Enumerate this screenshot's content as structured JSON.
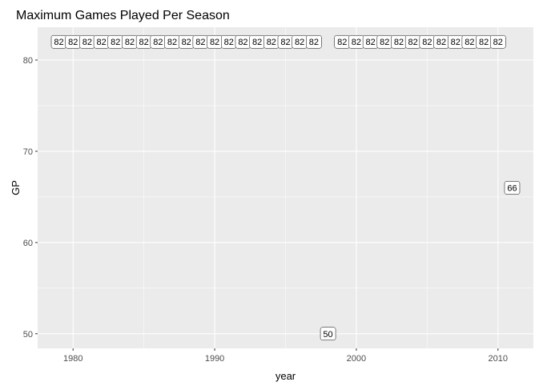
{
  "chart_data": {
    "type": "scatter",
    "title": "Maximum Games Played Per Season",
    "xlabel": "year",
    "ylabel": "GP",
    "xlim": [
      1977.5,
      2012.5
    ],
    "ylim": [
      48.4,
      83.6
    ],
    "x_ticks": [
      1980,
      1990,
      2000,
      2010
    ],
    "y_ticks": [
      50,
      60,
      70,
      80
    ],
    "grid": true,
    "legend": "none",
    "colors": {
      "panel_background": "#ebebeb",
      "grid_major": "#ffffff",
      "label_fill": "#ffffff",
      "label_border": "#000000"
    },
    "points": [
      {
        "x": 1979,
        "y": 82,
        "label": "82"
      },
      {
        "x": 1980,
        "y": 82,
        "label": "82"
      },
      {
        "x": 1981,
        "y": 82,
        "label": "82"
      },
      {
        "x": 1982,
        "y": 82,
        "label": "82"
      },
      {
        "x": 1983,
        "y": 82,
        "label": "82"
      },
      {
        "x": 1984,
        "y": 82,
        "label": "82"
      },
      {
        "x": 1985,
        "y": 82,
        "label": "82"
      },
      {
        "x": 1986,
        "y": 82,
        "label": "82"
      },
      {
        "x": 1987,
        "y": 82,
        "label": "82"
      },
      {
        "x": 1988,
        "y": 82,
        "label": "82"
      },
      {
        "x": 1989,
        "y": 82,
        "label": "82"
      },
      {
        "x": 1990,
        "y": 82,
        "label": "82"
      },
      {
        "x": 1991,
        "y": 82,
        "label": "82"
      },
      {
        "x": 1992,
        "y": 82,
        "label": "82"
      },
      {
        "x": 1993,
        "y": 82,
        "label": "82"
      },
      {
        "x": 1994,
        "y": 82,
        "label": "82"
      },
      {
        "x": 1995,
        "y": 82,
        "label": "82"
      },
      {
        "x": 1996,
        "y": 82,
        "label": "82"
      },
      {
        "x": 1997,
        "y": 82,
        "label": "82"
      },
      {
        "x": 1998,
        "y": 50,
        "label": "50"
      },
      {
        "x": 1999,
        "y": 82,
        "label": "82"
      },
      {
        "x": 2000,
        "y": 82,
        "label": "82"
      },
      {
        "x": 2001,
        "y": 82,
        "label": "82"
      },
      {
        "x": 2002,
        "y": 82,
        "label": "82"
      },
      {
        "x": 2003,
        "y": 82,
        "label": "82"
      },
      {
        "x": 2004,
        "y": 82,
        "label": "82"
      },
      {
        "x": 2005,
        "y": 82,
        "label": "82"
      },
      {
        "x": 2006,
        "y": 82,
        "label": "82"
      },
      {
        "x": 2007,
        "y": 82,
        "label": "82"
      },
      {
        "x": 2008,
        "y": 82,
        "label": "82"
      },
      {
        "x": 2009,
        "y": 82,
        "label": "82"
      },
      {
        "x": 2010,
        "y": 82,
        "label": "82"
      },
      {
        "x": 2011,
        "y": 66,
        "label": "66"
      }
    ]
  }
}
